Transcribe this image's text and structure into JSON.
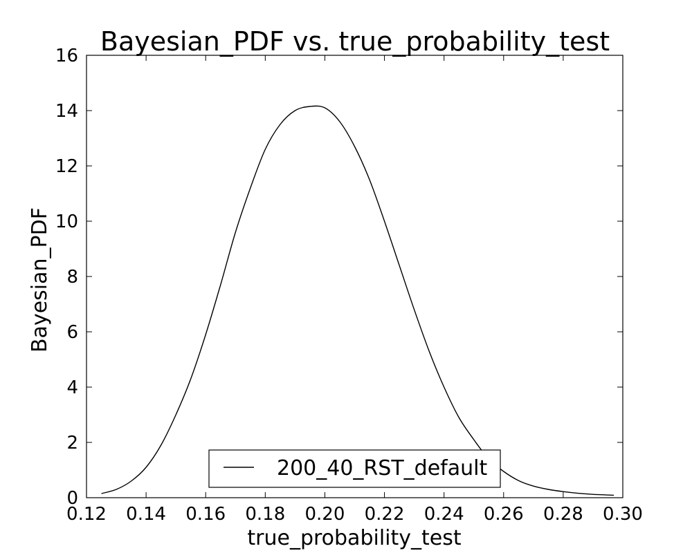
{
  "chart_data": {
    "type": "line",
    "title": "Bayesian_PDF vs. true_probability_test",
    "xlabel": "true_probability_test",
    "ylabel": "Bayesian_PDF",
    "xlim": [
      0.12,
      0.3
    ],
    "ylim": [
      0,
      16
    ],
    "xticks": [
      "0.12",
      "0.14",
      "0.16",
      "0.18",
      "0.20",
      "0.22",
      "0.24",
      "0.26",
      "0.28",
      "0.30"
    ],
    "yticks": [
      "0",
      "2",
      "4",
      "6",
      "8",
      "10",
      "12",
      "14",
      "16"
    ],
    "grid": false,
    "legend_position": "lower center",
    "series": [
      {
        "name": "200_40_RST_default",
        "color": "#000000",
        "x": [
          0.125,
          0.13,
          0.135,
          0.14,
          0.145,
          0.15,
          0.155,
          0.16,
          0.165,
          0.17,
          0.175,
          0.18,
          0.185,
          0.19,
          0.195,
          0.2,
          0.205,
          0.21,
          0.215,
          0.22,
          0.225,
          0.23,
          0.235,
          0.24,
          0.245,
          0.25,
          0.255,
          0.26,
          0.265,
          0.27,
          0.275,
          0.28,
          0.285,
          0.29,
          0.297
        ],
        "y": [
          0.15,
          0.3,
          0.6,
          1.1,
          1.9,
          3.0,
          4.3,
          5.9,
          7.7,
          9.6,
          11.2,
          12.6,
          13.5,
          14.0,
          14.15,
          14.1,
          13.6,
          12.7,
          11.5,
          10.0,
          8.4,
          6.8,
          5.3,
          4.0,
          2.9,
          2.1,
          1.4,
          0.95,
          0.62,
          0.42,
          0.3,
          0.22,
          0.16,
          0.12,
          0.09
        ]
      }
    ]
  }
}
